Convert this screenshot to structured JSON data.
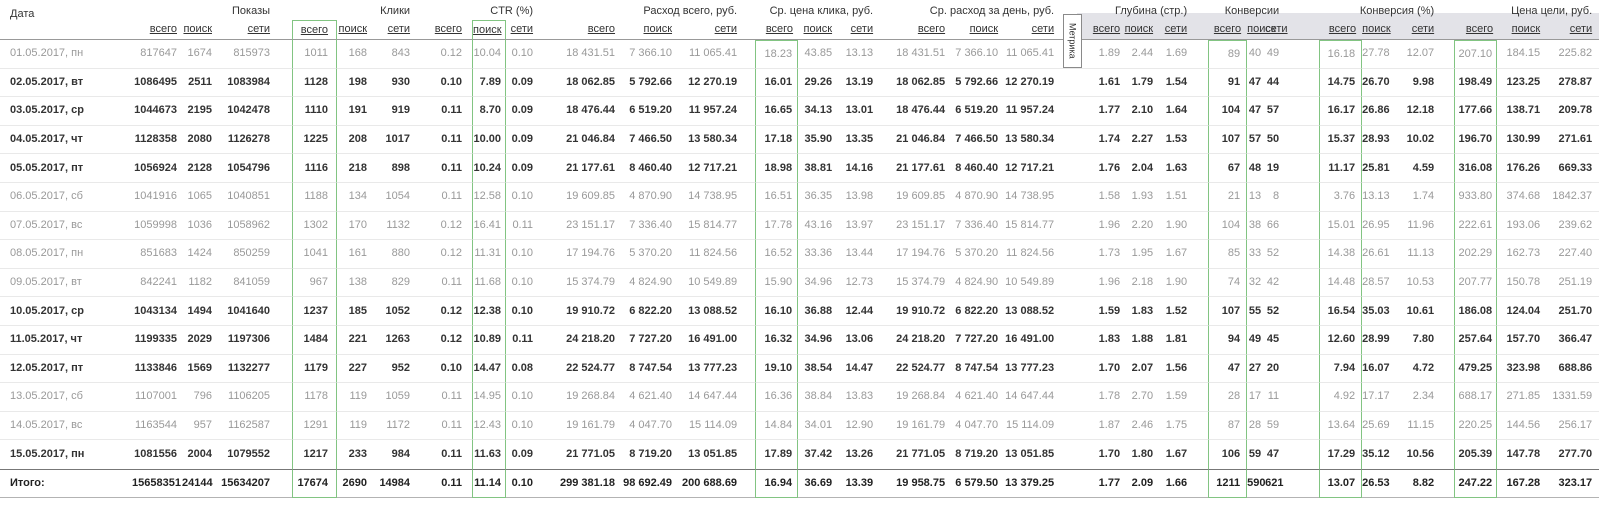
{
  "table": {
    "date_header": "Дата",
    "metrica_tab": "Метрика",
    "colors": {
      "green_box": "#82c482",
      "metrica_header_bg": "#e3e3e8",
      "muted_row_text": "#999999",
      "workday_row_text": "#333333"
    },
    "groups": [
      {
        "label": "Показы",
        "cols": [
          "всего",
          "поиск",
          "сети"
        ]
      },
      {
        "label": "Клики",
        "cols": [
          "всего",
          "поиск",
          "сети"
        ]
      },
      {
        "label": "CTR (%)",
        "cols": [
          "всего",
          "поиск",
          "сети"
        ]
      },
      {
        "label": "Расход всего, руб.",
        "cols": [
          "всего",
          "поиск",
          "сети"
        ]
      },
      {
        "label": "Ср. цена клика, руб.",
        "cols": [
          "всего",
          "поиск",
          "сети"
        ]
      },
      {
        "label": "Ср. расход за день, руб.",
        "cols": [
          "всего",
          "поиск",
          "сети"
        ]
      },
      {
        "label": "Глубина (стр.)",
        "cols": [
          "всего",
          "поиск",
          "сети"
        ]
      },
      {
        "label": "Конверсии",
        "cols": [
          "всего",
          "поиск",
          "сети"
        ]
      },
      {
        "label": "Конверсия (%)",
        "cols": [
          "всего",
          "поиск",
          "сети"
        ]
      },
      {
        "label": "Цена цели, руб.",
        "cols": [
          "всего",
          "поиск",
          "сети"
        ]
      }
    ],
    "rows": [
      {
        "date": "01.05.2017, пн",
        "muted": true,
        "values": [
          "817647",
          "1674",
          "815973",
          "1011",
          "168",
          "843",
          "0.12",
          "10.04",
          "0.10",
          "18 431.51",
          "7 366.10",
          "11 065.41",
          "18.23",
          "43.85",
          "13.13",
          "18 431.51",
          "7 366.10",
          "11 065.41",
          "1.89",
          "2.44",
          "1.69",
          "89",
          "40",
          "49",
          "16.18",
          "27.78",
          "12.07",
          "207.10",
          "184.15",
          "225.82"
        ]
      },
      {
        "date": "02.05.2017, вт",
        "muted": false,
        "values": [
          "1086495",
          "2511",
          "1083984",
          "1128",
          "198",
          "930",
          "0.10",
          "7.89",
          "0.09",
          "18 062.85",
          "5 792.66",
          "12 270.19",
          "16.01",
          "29.26",
          "13.19",
          "18 062.85",
          "5 792.66",
          "12 270.19",
          "1.61",
          "1.79",
          "1.54",
          "91",
          "47",
          "44",
          "14.75",
          "26.70",
          "9.98",
          "198.49",
          "123.25",
          "278.87"
        ]
      },
      {
        "date": "03.05.2017, ср",
        "muted": false,
        "values": [
          "1044673",
          "2195",
          "1042478",
          "1110",
          "191",
          "919",
          "0.11",
          "8.70",
          "0.09",
          "18 476.44",
          "6 519.20",
          "11 957.24",
          "16.65",
          "34.13",
          "13.01",
          "18 476.44",
          "6 519.20",
          "11 957.24",
          "1.77",
          "2.10",
          "1.64",
          "104",
          "47",
          "57",
          "16.17",
          "26.86",
          "12.18",
          "177.66",
          "138.71",
          "209.78"
        ]
      },
      {
        "date": "04.05.2017, чт",
        "muted": false,
        "values": [
          "1128358",
          "2080",
          "1126278",
          "1225",
          "208",
          "1017",
          "0.11",
          "10.00",
          "0.09",
          "21 046.84",
          "7 466.50",
          "13 580.34",
          "17.18",
          "35.90",
          "13.35",
          "21 046.84",
          "7 466.50",
          "13 580.34",
          "1.74",
          "2.27",
          "1.53",
          "107",
          "57",
          "50",
          "15.37",
          "28.93",
          "10.02",
          "196.70",
          "130.99",
          "271.61"
        ]
      },
      {
        "date": "05.05.2017, пт",
        "muted": false,
        "values": [
          "1056924",
          "2128",
          "1054796",
          "1116",
          "218",
          "898",
          "0.11",
          "10.24",
          "0.09",
          "21 177.61",
          "8 460.40",
          "12 717.21",
          "18.98",
          "38.81",
          "14.16",
          "21 177.61",
          "8 460.40",
          "12 717.21",
          "1.76",
          "2.04",
          "1.63",
          "67",
          "48",
          "19",
          "11.17",
          "25.81",
          "4.59",
          "316.08",
          "176.26",
          "669.33"
        ]
      },
      {
        "date": "06.05.2017, сб",
        "muted": true,
        "values": [
          "1041916",
          "1065",
          "1040851",
          "1188",
          "134",
          "1054",
          "0.11",
          "12.58",
          "0.10",
          "19 609.85",
          "4 870.90",
          "14 738.95",
          "16.51",
          "36.35",
          "13.98",
          "19 609.85",
          "4 870.90",
          "14 738.95",
          "1.58",
          "1.93",
          "1.51",
          "21",
          "13",
          "8",
          "3.76",
          "13.13",
          "1.74",
          "933.80",
          "374.68",
          "1842.37"
        ]
      },
      {
        "date": "07.05.2017, вс",
        "muted": true,
        "values": [
          "1059998",
          "1036",
          "1058962",
          "1302",
          "170",
          "1132",
          "0.12",
          "16.41",
          "0.11",
          "23 151.17",
          "7 336.40",
          "15 814.77",
          "17.78",
          "43.16",
          "13.97",
          "23 151.17",
          "7 336.40",
          "15 814.77",
          "1.96",
          "2.20",
          "1.90",
          "104",
          "38",
          "66",
          "15.01",
          "26.95",
          "11.96",
          "222.61",
          "193.06",
          "239.62"
        ]
      },
      {
        "date": "08.05.2017, пн",
        "muted": true,
        "values": [
          "851683",
          "1424",
          "850259",
          "1041",
          "161",
          "880",
          "0.12",
          "11.31",
          "0.10",
          "17 194.76",
          "5 370.20",
          "11 824.56",
          "16.52",
          "33.36",
          "13.44",
          "17 194.76",
          "5 370.20",
          "11 824.56",
          "1.73",
          "1.95",
          "1.67",
          "85",
          "33",
          "52",
          "14.38",
          "26.61",
          "11.13",
          "202.29",
          "162.73",
          "227.40"
        ]
      },
      {
        "date": "09.05.2017, вт",
        "muted": true,
        "values": [
          "842241",
          "1182",
          "841059",
          "967",
          "138",
          "829",
          "0.11",
          "11.68",
          "0.10",
          "15 374.79",
          "4 824.90",
          "10 549.89",
          "15.90",
          "34.96",
          "12.73",
          "15 374.79",
          "4 824.90",
          "10 549.89",
          "1.96",
          "2.18",
          "1.90",
          "74",
          "32",
          "42",
          "14.48",
          "28.57",
          "10.53",
          "207.77",
          "150.78",
          "251.19"
        ]
      },
      {
        "date": "10.05.2017, ср",
        "muted": false,
        "values": [
          "1043134",
          "1494",
          "1041640",
          "1237",
          "185",
          "1052",
          "0.12",
          "12.38",
          "0.10",
          "19 910.72",
          "6 822.20",
          "13 088.52",
          "16.10",
          "36.88",
          "12.44",
          "19 910.72",
          "6 822.20",
          "13 088.52",
          "1.59",
          "1.83",
          "1.52",
          "107",
          "55",
          "52",
          "16.54",
          "35.03",
          "10.61",
          "186.08",
          "124.04",
          "251.70"
        ]
      },
      {
        "date": "11.05.2017, чт",
        "muted": false,
        "values": [
          "1199335",
          "2029",
          "1197306",
          "1484",
          "221",
          "1263",
          "0.12",
          "10.89",
          "0.11",
          "24 218.20",
          "7 727.20",
          "16 491.00",
          "16.32",
          "34.96",
          "13.06",
          "24 218.20",
          "7 727.20",
          "16 491.00",
          "1.83",
          "1.88",
          "1.81",
          "94",
          "49",
          "45",
          "12.60",
          "28.99",
          "7.80",
          "257.64",
          "157.70",
          "366.47"
        ]
      },
      {
        "date": "12.05.2017, пт",
        "muted": false,
        "values": [
          "1133846",
          "1569",
          "1132277",
          "1179",
          "227",
          "952",
          "0.10",
          "14.47",
          "0.08",
          "22 524.77",
          "8 747.54",
          "13 777.23",
          "19.10",
          "38.54",
          "14.47",
          "22 524.77",
          "8 747.54",
          "13 777.23",
          "1.70",
          "2.07",
          "1.56",
          "47",
          "27",
          "20",
          "7.94",
          "16.07",
          "4.72",
          "479.25",
          "323.98",
          "688.86"
        ]
      },
      {
        "date": "13.05.2017, сб",
        "muted": true,
        "values": [
          "1107001",
          "796",
          "1106205",
          "1178",
          "119",
          "1059",
          "0.11",
          "14.95",
          "0.10",
          "19 268.84",
          "4 621.40",
          "14 647.44",
          "16.36",
          "38.84",
          "13.83",
          "19 268.84",
          "4 621.40",
          "14 647.44",
          "1.78",
          "2.70",
          "1.59",
          "28",
          "17",
          "11",
          "4.92",
          "17.17",
          "2.34",
          "688.17",
          "271.85",
          "1331.59"
        ]
      },
      {
        "date": "14.05.2017, вс",
        "muted": true,
        "values": [
          "1163544",
          "957",
          "1162587",
          "1291",
          "119",
          "1172",
          "0.11",
          "12.43",
          "0.10",
          "19 161.79",
          "4 047.70",
          "15 114.09",
          "14.84",
          "34.01",
          "12.90",
          "19 161.79",
          "4 047.70",
          "15 114.09",
          "1.87",
          "2.46",
          "1.75",
          "87",
          "28",
          "59",
          "13.64",
          "25.69",
          "11.15",
          "220.25",
          "144.56",
          "256.17"
        ]
      },
      {
        "date": "15.05.2017, пн",
        "muted": false,
        "values": [
          "1081556",
          "2004",
          "1079552",
          "1217",
          "233",
          "984",
          "0.11",
          "11.63",
          "0.09",
          "21 771.05",
          "8 719.20",
          "13 051.85",
          "17.89",
          "37.42",
          "13.26",
          "21 771.05",
          "8 719.20",
          "13 051.85",
          "1.70",
          "1.80",
          "1.67",
          "106",
          "59",
          "47",
          "17.29",
          "35.12",
          "10.56",
          "205.39",
          "147.78",
          "277.70"
        ]
      }
    ],
    "total": {
      "label": "Итого:",
      "values": [
        "15658351",
        "24144",
        "15634207",
        "17674",
        "2690",
        "14984",
        "0.11",
        "11.14",
        "0.10",
        "299 381.18",
        "98 692.49",
        "200 688.69",
        "16.94",
        "36.69",
        "13.39",
        "19 958.75",
        "6 579.50",
        "13 379.25",
        "1.77",
        "2.09",
        "1.66",
        "1211",
        "590",
        "621",
        "13.07",
        "26.53",
        "8.82",
        "247.22",
        "167.28",
        "323.17"
      ]
    }
  }
}
